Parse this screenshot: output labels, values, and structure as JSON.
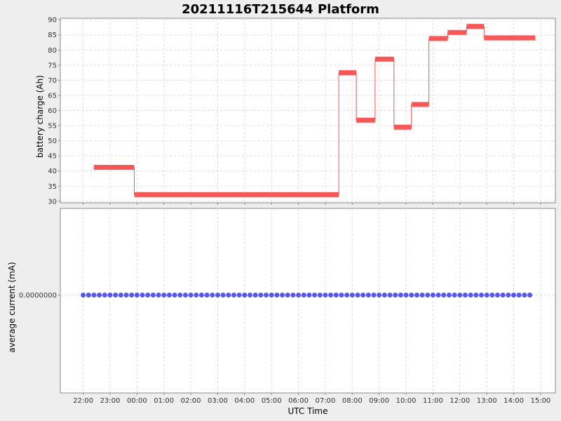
{
  "chart_data": [
    {
      "type": "line",
      "title": "20211116T215644 Platform",
      "ylabel": "battery charge (Ah)",
      "ylim": [
        29.5,
        90.5
      ],
      "yticks": [
        30,
        35,
        40,
        45,
        50,
        55,
        60,
        65,
        70,
        75,
        80,
        85,
        90
      ],
      "grid": true,
      "color": "#ff5555",
      "segments": [
        {
          "start": -1.6,
          "end": -0.1,
          "value": 41.2
        },
        {
          "start": -0.1,
          "end": 7.5,
          "value": 32.2
        },
        {
          "start": 7.5,
          "end": 8.15,
          "value": 72.5
        },
        {
          "start": 8.15,
          "end": 8.85,
          "value": 56.8
        },
        {
          "start": 8.85,
          "end": 9.55,
          "value": 77.0
        },
        {
          "start": 9.55,
          "end": 10.2,
          "value": 54.5
        },
        {
          "start": 10.2,
          "end": 10.85,
          "value": 62.0
        },
        {
          "start": 10.85,
          "end": 11.55,
          "value": 83.8
        },
        {
          "start": 11.55,
          "end": 12.25,
          "value": 85.8
        },
        {
          "start": 12.25,
          "end": 12.9,
          "value": 87.8
        },
        {
          "start": 12.9,
          "end": 14.8,
          "value": 84.0
        }
      ]
    },
    {
      "type": "scatter",
      "ylabel": "average current (mA)",
      "xlabel": "UTC Time",
      "xticks": [
        "22:00",
        "23:00",
        "00:00",
        "01:00",
        "02:00",
        "03:00",
        "04:00",
        "05:00",
        "06:00",
        "07:00",
        "08:00",
        "09:00",
        "10:00",
        "11:00",
        "12:00",
        "13:00",
        "14:00",
        "15:00"
      ],
      "xlim": [
        -2.85,
        15.55
      ],
      "yticks": [
        "0.0000000"
      ],
      "y_value": 0,
      "x_range": [
        -2.0,
        14.75
      ],
      "color": "#5555ff",
      "grid": true
    }
  ]
}
